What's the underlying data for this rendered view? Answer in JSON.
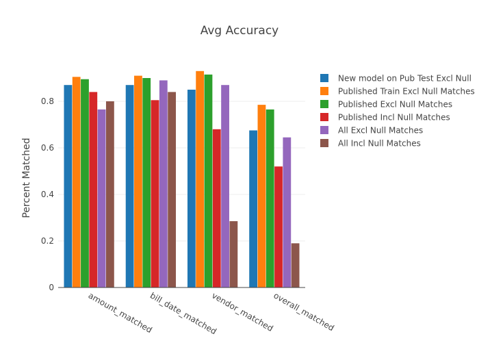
{
  "chart_data": {
    "type": "bar",
    "title": "Avg Accuracy",
    "xlabel": "",
    "ylabel": "Percent Matched",
    "ylim": [
      0,
      1.0
    ],
    "yticks": [
      0,
      0.2,
      0.4,
      0.6,
      0.8
    ],
    "ytick_labels": [
      "0",
      "0.2",
      "0.4",
      "0.6",
      "0.8"
    ],
    "grid": true,
    "legend_position": "right",
    "categories": [
      "amount_matched",
      "bill_date_matched",
      "vendor_matched",
      "overall_matched"
    ],
    "series": [
      {
        "name": "New model on Pub Test Excl Null",
        "color": "#1f77b4",
        "values": [
          0.87,
          0.87,
          0.85,
          0.675
        ]
      },
      {
        "name": "Published Train Excl Null Matches",
        "color": "#ff7f0e",
        "values": [
          0.905,
          0.91,
          0.93,
          0.785
        ]
      },
      {
        "name": "Published Excl Null Matches",
        "color": "#2ca02c",
        "values": [
          0.895,
          0.9,
          0.915,
          0.765
        ]
      },
      {
        "name": "Published Incl Null Matches",
        "color": "#d62728",
        "values": [
          0.84,
          0.805,
          0.68,
          0.52
        ]
      },
      {
        "name": "All Excl Null Matches",
        "color": "#9467bd",
        "values": [
          0.765,
          0.89,
          0.87,
          0.645
        ]
      },
      {
        "name": "All Incl Null Matches",
        "color": "#8c564b",
        "values": [
          0.8,
          0.84,
          0.285,
          0.19
        ]
      }
    ]
  }
}
